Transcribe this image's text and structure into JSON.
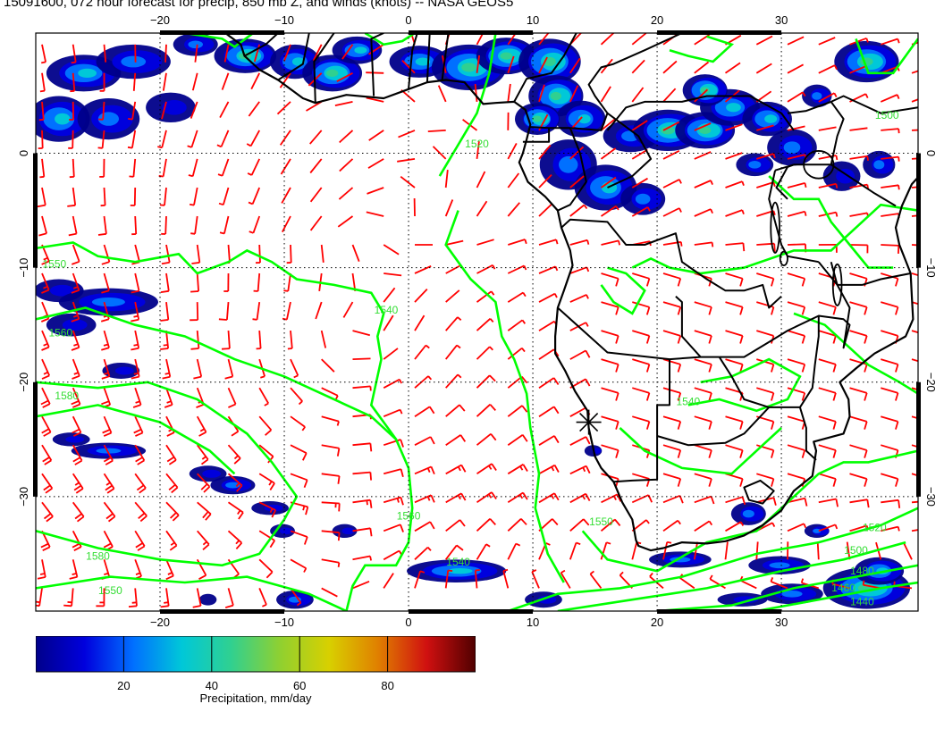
{
  "title": "15091600, 072 hour forecast for precip, 850 mb Z, and winds (knots) -- NASA GEOS5",
  "map": {
    "lon_range": [
      -30,
      41
    ],
    "lat_range": [
      -40,
      10.5
    ],
    "lon_ticks": [
      -20,
      -10,
      0,
      10,
      20,
      30
    ],
    "lat_ticks": [
      0,
      -10,
      -20,
      -30
    ],
    "lon_tick_labels": [
      "−20",
      "−10",
      "0",
      "10",
      "20",
      "30"
    ],
    "lat_tick_labels": [
      "0",
      "−10",
      "−20",
      "−30"
    ],
    "grid": true,
    "marker": {
      "lon": 14.5,
      "lat": -23.5,
      "symbol": "star-cross"
    },
    "contour_labels": [
      {
        "text": "1520",
        "lon": 5.5,
        "lat": 0.5
      },
      {
        "text": "1550",
        "lon": -28.5,
        "lat": -10
      },
      {
        "text": "1540",
        "lon": -1.8,
        "lat": -14
      },
      {
        "text": "1560",
        "lon": -28,
        "lat": -16
      },
      {
        "text": "1580",
        "lon": -27.5,
        "lat": -21.5
      },
      {
        "text": "1540",
        "lon": 22.5,
        "lat": -22
      },
      {
        "text": "1560",
        "lon": 0,
        "lat": -32
      },
      {
        "text": "1550",
        "lon": 15.5,
        "lat": -32.5
      },
      {
        "text": "1580",
        "lon": -25,
        "lat": -35.5
      },
      {
        "text": "1540",
        "lon": 4,
        "lat": -36
      },
      {
        "text": "1550",
        "lon": -24,
        "lat": -38.5
      },
      {
        "text": "1520",
        "lon": 37.5,
        "lat": -33
      },
      {
        "text": "1500",
        "lon": 36,
        "lat": -35
      },
      {
        "text": "1480",
        "lon": 36.5,
        "lat": -36.8
      },
      {
        "text": "1460",
        "lon": 35,
        "lat": -38.3
      },
      {
        "text": "1440",
        "lon": 36.5,
        "lat": -39.5
      },
      {
        "text": "1500",
        "lon": 38.5,
        "lat": 3
      }
    ]
  },
  "colors": {
    "wind_barbs": "#ff0000",
    "height_contours": "#00ff00",
    "coastlines": "#000000",
    "grid": "#000000"
  },
  "colorbar": {
    "label": "Precipitation, mm/day",
    "range": [
      0,
      100
    ],
    "ticks": [
      20,
      40,
      60,
      80
    ],
    "tick_labels": [
      "20",
      "40",
      "60",
      "80"
    ],
    "colors": [
      "#00008a",
      "#0000dd",
      "#0070ff",
      "#00c8d8",
      "#30d090",
      "#90d030",
      "#d8d000",
      "#e08000",
      "#d01010",
      "#500000"
    ]
  }
}
